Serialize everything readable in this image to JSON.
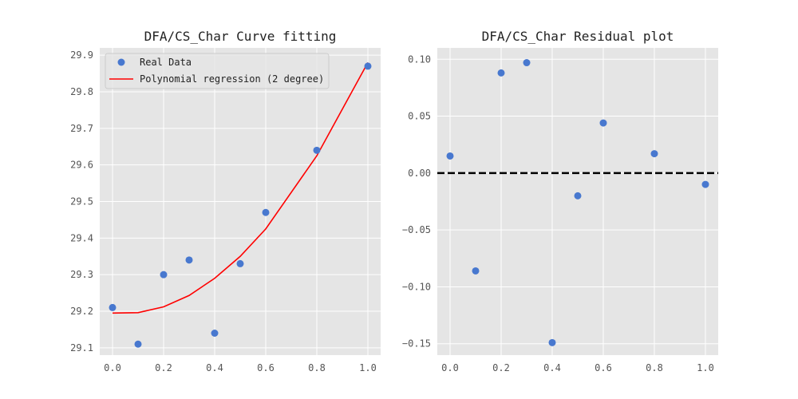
{
  "chart_data": [
    {
      "type": "scatter",
      "title": "DFA/CS_Char Curve fitting",
      "xlim": [
        -0.05,
        1.05
      ],
      "ylim": [
        29.08,
        29.92
      ],
      "xticks": [
        0.0,
        0.2,
        0.4,
        0.6,
        0.8,
        1.0
      ],
      "xtick_labels": [
        "0.0",
        "0.2",
        "0.4",
        "0.6",
        "0.8",
        "1.0"
      ],
      "yticks": [
        29.1,
        29.2,
        29.3,
        29.4,
        29.5,
        29.6,
        29.7,
        29.8,
        29.9
      ],
      "ytick_labels": [
        "29.1",
        "29.2",
        "29.3",
        "29.4",
        "29.5",
        "29.6",
        "29.7",
        "29.8",
        "29.9"
      ],
      "grid": true,
      "legend_position": "top-left",
      "series": [
        {
          "name": "Real Data",
          "kind": "scatter",
          "color": "#4878cf",
          "x": [
            0.0,
            0.1,
            0.2,
            0.3,
            0.4,
            0.5,
            0.6,
            0.8,
            1.0
          ],
          "y": [
            29.21,
            29.11,
            29.3,
            29.34,
            29.14,
            29.33,
            29.47,
            29.64,
            29.87
          ]
        },
        {
          "name": "Polynomial regression (2 degree)",
          "kind": "line",
          "color": "#ff0000",
          "x": [
            0.0,
            0.1,
            0.2,
            0.3,
            0.4,
            0.5,
            0.6,
            0.8,
            1.0
          ],
          "y": [
            29.195,
            29.196,
            29.212,
            29.243,
            29.29,
            29.35,
            29.425,
            29.625,
            29.88
          ]
        }
      ]
    },
    {
      "type": "scatter",
      "title": "DFA/CS_Char Residual plot",
      "xlim": [
        -0.05,
        1.05
      ],
      "ylim": [
        -0.16,
        0.11
      ],
      "xticks": [
        0.0,
        0.2,
        0.4,
        0.6,
        0.8,
        1.0
      ],
      "xtick_labels": [
        "0.0",
        "0.2",
        "0.4",
        "0.6",
        "0.8",
        "1.0"
      ],
      "yticks": [
        -0.15,
        -0.1,
        -0.05,
        0.0,
        0.05,
        0.1
      ],
      "ytick_labels": [
        "−0.15",
        "−0.10",
        "−0.05",
        "0.00",
        "0.05",
        "0.10"
      ],
      "grid": true,
      "reference_line": {
        "y": 0.0,
        "style": "dashed",
        "color": "#000000"
      },
      "series": [
        {
          "kind": "scatter",
          "color": "#4878cf",
          "x": [
            0.0,
            0.1,
            0.2,
            0.3,
            0.4,
            0.5,
            0.6,
            0.8,
            1.0
          ],
          "y": [
            0.015,
            -0.086,
            0.088,
            0.097,
            -0.149,
            -0.02,
            0.044,
            0.017,
            -0.01
          ]
        }
      ]
    }
  ]
}
